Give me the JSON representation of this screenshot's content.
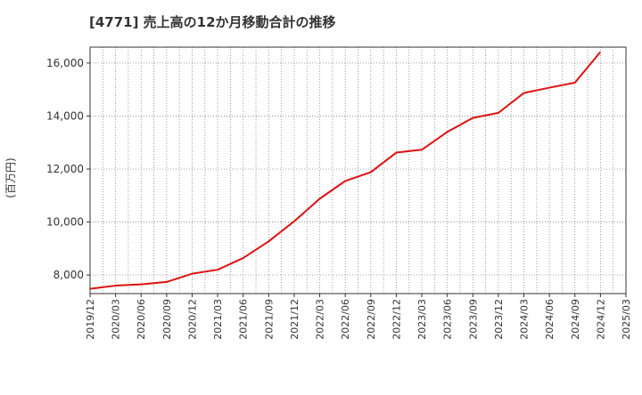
{
  "chart_data": {
    "type": "line",
    "title": "[4771]  売上高の12か月移動合計の推移",
    "ylabel": "(百万円)",
    "xlabel": "",
    "ylim": [
      7300,
      16600
    ],
    "yticks": [
      8000,
      10000,
      12000,
      14000,
      16000
    ],
    "ytick_labels": [
      "8,000",
      "10,000",
      "12,000",
      "14,000",
      "16,000"
    ],
    "x": [
      "2019/12",
      "2020/03",
      "2020/06",
      "2020/09",
      "2020/12",
      "2021/03",
      "2021/06",
      "2021/09",
      "2021/12",
      "2022/03",
      "2022/06",
      "2022/09",
      "2022/12",
      "2023/03",
      "2023/06",
      "2023/09",
      "2023/12",
      "2024/03",
      "2024/06",
      "2024/09",
      "2024/12",
      "2025/03"
    ],
    "grid": true,
    "series": [
      {
        "color": "#dd1111",
        "values": [
          7480,
          7600,
          7650,
          7740,
          8050,
          8200,
          8640,
          9270,
          10030,
          10880,
          11550,
          11880,
          12620,
          12730,
          13400,
          13930,
          14120,
          14870,
          15070,
          15260,
          16420,
          null
        ]
      }
    ]
  }
}
